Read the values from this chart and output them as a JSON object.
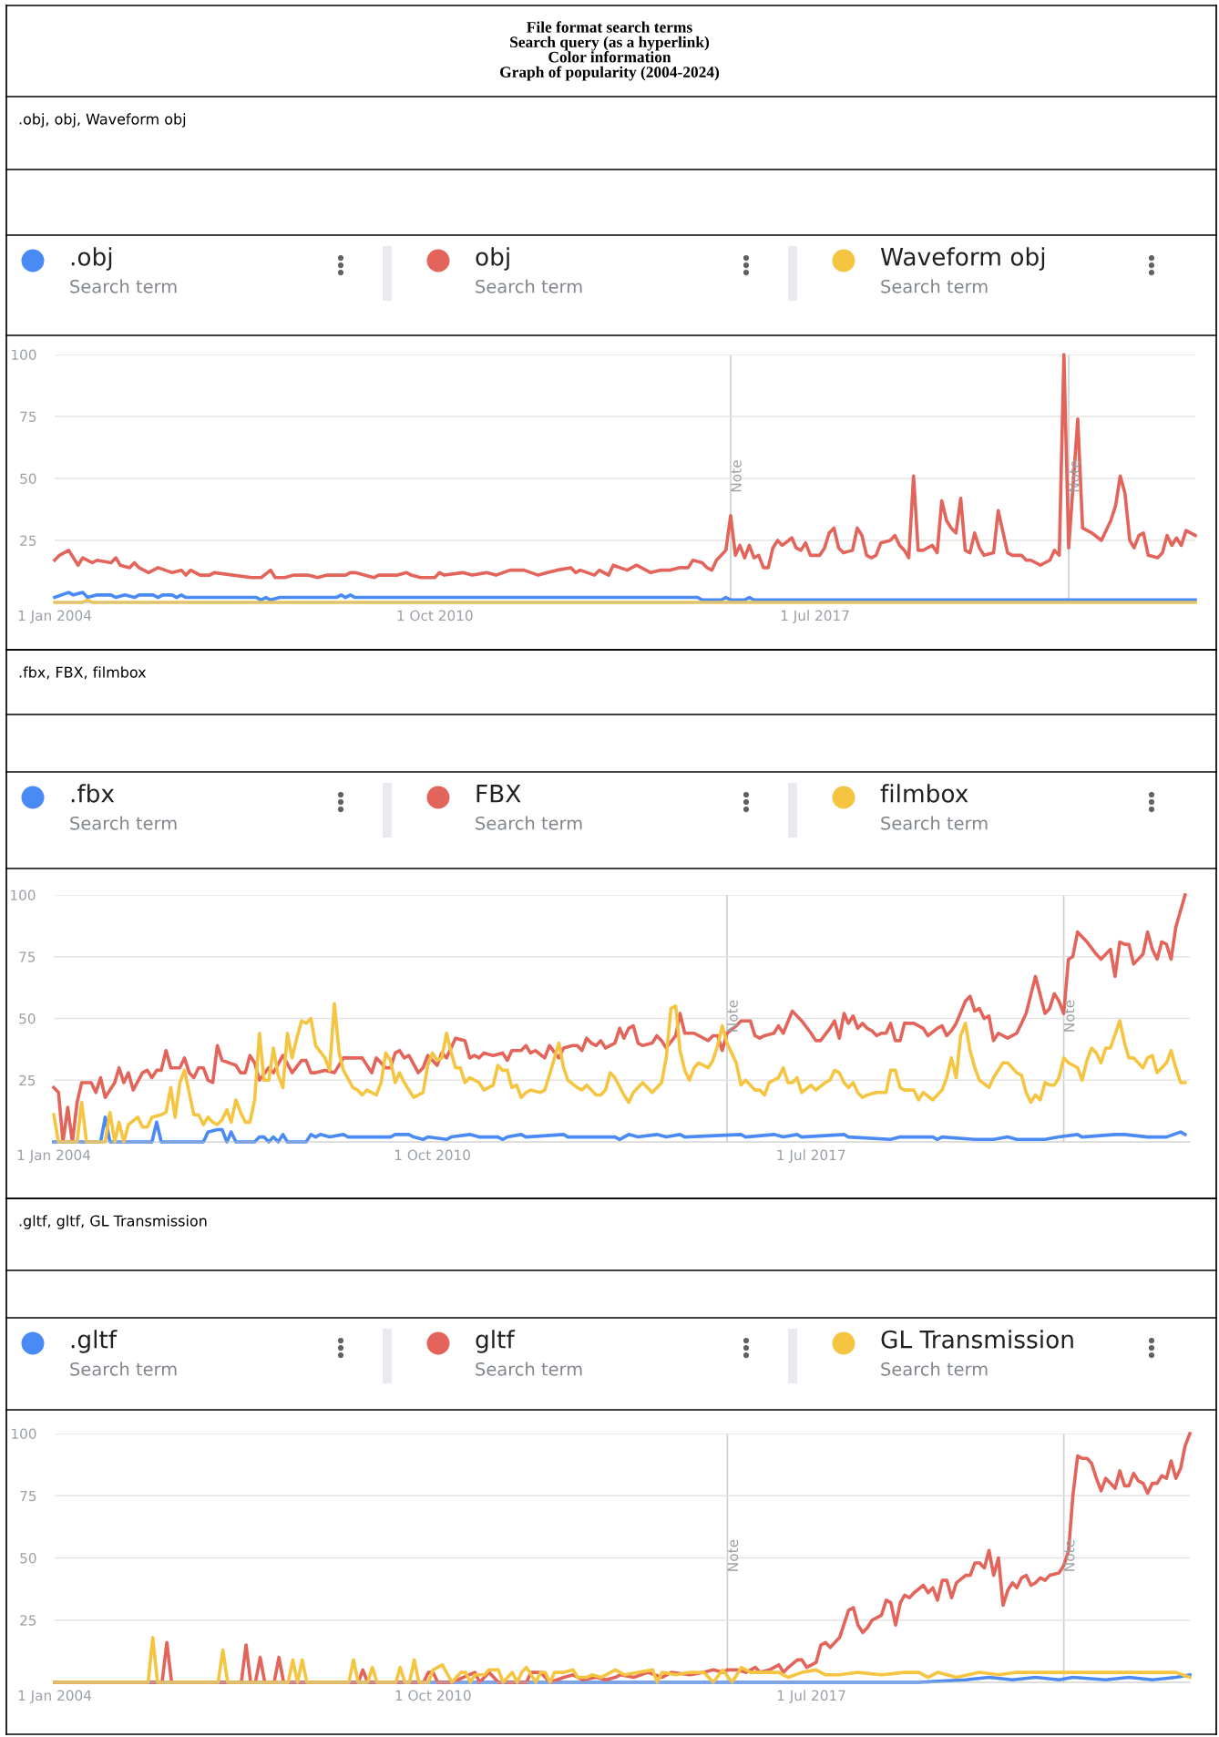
{
  "chart_data": [
    {
      "type": "line",
      "title": "File format search terms\nSearch query (as a hyperlink)\nColor information\nGraph of popularity (2004-2024)",
      "subtitle": ".obj, obj, Waveform obj",
      "legend_title": "Search term",
      "legend": "top",
      "grid": "y",
      "xlim": [
        "2004-01",
        "2024-04"
      ],
      "xticks": [
        {
          "value": "2004-01-01",
          "label": "1 Jan 2004"
        },
        {
          "value": "2010-10-01",
          "label": "1 Oct 2010"
        },
        {
          "value": "2017-07-01",
          "label": "1 Jul 2017"
        }
      ],
      "ylim": [
        0,
        100
      ],
      "yticks": [
        25,
        50,
        75,
        100
      ],
      "ref_lines": [
        {
          "axis": "x",
          "value": "2016-01",
          "label": "Note"
        },
        {
          "axis": "x",
          "value": "2022-01",
          "label": "Note"
        }
      ],
      "series": [
        {
          "name": ".obj",
          "color": "#4a8af4",
          "x": [
            "2004-01",
            "2004-04",
            "2004-05",
            "2004-07",
            "2004-08",
            "2004-10",
            "2005-01",
            "2005-02",
            "2005-04",
            "2005-06",
            "2005-07",
            "2005-10",
            "2005-11",
            "2005-12",
            "2006-02",
            "2006-03",
            "2006-04",
            "2006-05",
            "2007-08",
            "2007-09",
            "2007-10",
            "2007-11",
            "2008-01",
            "2009-01",
            "2009-02",
            "2009-03",
            "2009-04",
            "2009-05",
            "2015-06",
            "2015-07",
            "2015-11",
            "2015-12",
            "2016-01",
            "2016-04",
            "2016-05",
            "2016-06",
            "2024-04"
          ],
          "values": [
            2,
            4,
            3,
            4,
            2,
            3,
            3,
            2,
            3,
            2,
            3,
            3,
            2,
            3,
            3,
            2,
            3,
            2,
            2,
            1,
            2,
            1,
            2,
            2,
            3,
            2,
            3,
            2,
            2,
            1,
            1,
            2,
            1,
            1,
            2,
            1,
            1
          ]
        },
        {
          "name": "obj",
          "color": "#e2645a",
          "x": [
            "2004-01",
            "2004-02",
            "2004-04",
            "2004-06",
            "2004-07",
            "2004-09",
            "2004-10",
            "2005-01",
            "2005-02",
            "2005-03",
            "2005-05",
            "2005-06",
            "2005-07",
            "2005-09",
            "2005-11",
            "2006-02",
            "2006-04",
            "2006-05",
            "2006-06",
            "2006-08",
            "2006-10",
            "2006-11",
            "2007-07",
            "2007-09",
            "2007-11",
            "2007-12",
            "2008-02",
            "2008-04",
            "2008-07",
            "2008-09",
            "2008-11",
            "2009-03",
            "2009-04",
            "2009-05",
            "2009-09",
            "2009-10",
            "2010-02",
            "2010-04",
            "2010-05",
            "2010-07",
            "2010-10",
            "2010-11",
            "2010-12",
            "2011-04",
            "2011-06",
            "2011-09",
            "2011-11",
            "2012-02",
            "2012-05",
            "2012-08",
            "2012-10",
            "2012-12",
            "2013-03",
            "2013-04",
            "2013-05",
            "2013-08",
            "2013-09",
            "2013-11",
            "2013-12",
            "2014-03",
            "2014-05",
            "2014-08",
            "2014-10",
            "2014-12",
            "2015-02",
            "2015-04",
            "2015-05",
            "2015-07",
            "2015-08",
            "2015-09",
            "2015-10",
            "2015-12",
            "2016-01",
            "2016-02",
            "2016-03",
            "2016-04",
            "2016-05",
            "2016-06",
            "2016-07",
            "2016-08",
            "2016-09",
            "2016-10",
            "2016-11",
            "2016-12",
            "2017-02",
            "2017-03",
            "2017-04",
            "2017-05",
            "2017-06",
            "2017-08",
            "2017-09",
            "2017-10",
            "2017-11",
            "2017-12",
            "2018-01",
            "2018-03",
            "2018-04",
            "2018-05",
            "2018-06",
            "2018-07",
            "2018-08",
            "2018-09",
            "2018-11",
            "2018-12",
            "2019-01",
            "2019-02",
            "2019-03",
            "2019-04",
            "2019-05",
            "2019-06",
            "2019-08",
            "2019-09",
            "2019-10",
            "2019-11",
            "2019-12",
            "2020-01",
            "2020-02",
            "2020-03",
            "2020-04",
            "2020-05",
            "2020-06",
            "2020-07",
            "2020-09",
            "2020-10",
            "2020-12",
            "2021-01",
            "2021-03",
            "2021-04",
            "2021-05",
            "2021-07",
            "2021-09",
            "2021-10",
            "2021-11",
            "2021-12",
            "2022-01",
            "2022-03",
            "2022-04",
            "2022-06",
            "2022-08",
            "2022-10",
            "2022-11",
            "2022-12",
            "2023-01",
            "2023-02",
            "2023-03",
            "2023-04",
            "2023-05",
            "2023-06",
            "2023-08",
            "2023-09",
            "2023-10",
            "2023-11",
            "2023-12",
            "2024-01",
            "2024-02",
            "2024-04"
          ],
          "values": [
            17,
            19,
            21,
            15,
            18,
            16,
            17,
            16,
            18,
            15,
            14,
            16,
            14,
            12,
            14,
            12,
            13,
            11,
            13,
            11,
            11,
            12,
            10,
            10,
            13,
            10,
            10,
            11,
            11,
            10,
            11,
            11,
            12,
            12,
            10,
            11,
            11,
            12,
            11,
            10,
            10,
            12,
            11,
            12,
            11,
            12,
            11,
            13,
            13,
            11,
            12,
            13,
            14,
            12,
            13,
            11,
            13,
            11,
            15,
            13,
            15,
            12,
            13,
            13,
            14,
            14,
            17,
            16,
            14,
            13,
            17,
            21,
            35,
            19,
            23,
            18,
            23,
            18,
            19,
            14,
            14,
            22,
            25,
            23,
            26,
            22,
            21,
            24,
            19,
            19,
            22,
            28,
            30,
            22,
            20,
            21,
            30,
            27,
            19,
            18,
            19,
            24,
            25,
            27,
            23,
            21,
            18,
            51,
            21,
            21,
            23,
            20,
            41,
            33,
            30,
            28,
            42,
            21,
            20,
            28,
            22,
            19,
            20,
            37,
            20,
            19,
            19,
            17,
            17,
            15,
            17,
            21,
            19,
            100,
            22,
            74,
            30,
            28,
            25,
            33,
            39,
            51,
            44,
            25,
            22,
            27,
            28,
            19,
            18,
            20,
            27,
            23,
            26,
            23,
            29,
            27
          ]
        },
        {
          "name": "Waveform obj",
          "color": "#f5c542",
          "x": [
            "2004-01",
            "2004-07",
            "2004-08",
            "2004-09",
            "2024-04"
          ],
          "values": [
            0,
            0,
            1,
            0,
            0
          ]
        }
      ]
    },
    {
      "type": "line",
      "subtitle": ".fbx, FBX, filmbox",
      "legend_title": "Search term",
      "legend": "top",
      "grid": "y",
      "xlim": [
        "2004-01",
        "2024-04"
      ],
      "xticks": [
        {
          "value": "2004-01-01",
          "label": "1 Jan 2004"
        },
        {
          "value": "2010-10-01",
          "label": "1 Oct 2010"
        },
        {
          "value": "2017-07-01",
          "label": "1 Jul 2017"
        }
      ],
      "ylim": [
        0,
        100
      ],
      "yticks": [
        25,
        50,
        75,
        100
      ],
      "ref_lines": [
        {
          "axis": "x",
          "value": "2016-01",
          "label": "Note"
        },
        {
          "axis": "x",
          "value": "2022-01",
          "label": "Note"
        }
      ],
      "series": [
        {
          "name": ".fbx",
          "color": "#4a8af4",
          "x": [
            "2004-01",
            "2004-11",
            "2004-12",
            "2005-01",
            "2005-10",
            "2005-11",
            "2005-12",
            "2006-09",
            "2006-10",
            "2006-12",
            "2007-01",
            "2007-02",
            "2007-03",
            "2007-04",
            "2007-08",
            "2007-09",
            "2007-10",
            "2007-11",
            "2007-12",
            "2008-01",
            "2008-02",
            "2008-03",
            "2008-07",
            "2008-08",
            "2008-09",
            "2008-10",
            "2008-12",
            "2009-03",
            "2009-04",
            "2010-01",
            "2010-02",
            "2010-05",
            "2010-06",
            "2010-08",
            "2010-09",
            "2011-01",
            "2011-02",
            "2011-06",
            "2011-08",
            "2011-12",
            "2012-01",
            "2012-02",
            "2012-05",
            "2012-06",
            "2013-02",
            "2013-03",
            "2014-01",
            "2014-02",
            "2014-04",
            "2014-06",
            "2014-10",
            "2014-12",
            "2015-03",
            "2015-04",
            "2016-04",
            "2016-05",
            "2016-11",
            "2017-01",
            "2017-04",
            "2017-05",
            "2018-02",
            "2018-03",
            "2018-12",
            "2019-02",
            "2019-09",
            "2019-10",
            "2019-11",
            "2020-06",
            "2020-10",
            "2021-01",
            "2021-03",
            "2021-09",
            "2021-12",
            "2022-04",
            "2022-05",
            "2022-12",
            "2023-02",
            "2023-07",
            "2023-11",
            "2024-02",
            "2024-03"
          ],
          "values": [
            0,
            0,
            10,
            0,
            0,
            8,
            0,
            0,
            4,
            5,
            5,
            0,
            4,
            0,
            0,
            2,
            2,
            0,
            2,
            0,
            3,
            0,
            0,
            3,
            2,
            3,
            2,
            3,
            2,
            2,
            3,
            3,
            2,
            1,
            2,
            1,
            2,
            3,
            2,
            2,
            1,
            2,
            3,
            2,
            3,
            2,
            2,
            1,
            3,
            2,
            3,
            2,
            3,
            2,
            3,
            2,
            3,
            2,
            3,
            2,
            3,
            2,
            1,
            2,
            2,
            1,
            2,
            1,
            1,
            2,
            1,
            1,
            2,
            3,
            2,
            3,
            3,
            2,
            2,
            4,
            3
          ]
        },
        {
          "name": "FBX",
          "color": "#e2645a",
          "x": [
            "2004-01",
            "2004-02",
            "2004-03",
            "2004-04",
            "2004-05",
            "2004-06",
            "2004-07",
            "2004-09",
            "2004-10",
            "2004-11",
            "2004-12",
            "2005-02",
            "2005-03",
            "2005-04",
            "2005-05",
            "2005-06",
            "2005-08",
            "2005-09",
            "2005-10",
            "2005-11",
            "2005-12",
            "2006-01",
            "2006-02",
            "2006-04",
            "2006-05",
            "2006-06",
            "2006-07",
            "2006-08",
            "2006-09",
            "2006-10",
            "2006-11",
            "2006-12",
            "2007-01",
            "2007-04",
            "2007-05",
            "2007-06",
            "2007-07",
            "2007-08",
            "2007-09",
            "2007-11",
            "2007-12",
            "2008-02",
            "2008-04",
            "2008-06",
            "2008-07",
            "2008-08",
            "2008-09",
            "2008-11",
            "2009-01",
            "2009-03",
            "2009-07",
            "2009-09",
            "2009-10",
            "2009-12",
            "2010-01",
            "2010-02",
            "2010-03",
            "2010-04",
            "2010-05",
            "2010-07",
            "2010-08",
            "2010-09",
            "2010-11",
            "2010-12",
            "2011-01",
            "2011-03",
            "2011-05",
            "2011-06",
            "2011-07",
            "2011-08",
            "2011-09",
            "2011-11",
            "2012-01",
            "2012-02",
            "2012-03",
            "2012-05",
            "2012-06",
            "2012-07",
            "2012-08",
            "2012-10",
            "2012-11",
            "2013-01",
            "2013-02",
            "2013-04",
            "2013-05",
            "2013-06",
            "2013-07",
            "2013-08",
            "2013-09",
            "2013-10",
            "2013-11",
            "2014-01",
            "2014-02",
            "2014-03",
            "2014-04",
            "2014-05",
            "2014-06",
            "2014-07",
            "2014-09",
            "2014-10",
            "2014-11",
            "2014-12",
            "2015-02",
            "2015-03",
            "2015-04",
            "2015-06",
            "2015-09",
            "2015-10",
            "2015-11",
            "2015-12",
            "2016-01",
            "2016-03",
            "2016-04",
            "2016-06",
            "2016-07",
            "2016-08",
            "2016-09",
            "2016-11",
            "2016-12",
            "2017-01",
            "2017-03",
            "2017-05",
            "2017-07",
            "2017-08",
            "2017-09",
            "2017-11",
            "2017-12",
            "2018-01",
            "2018-02",
            "2018-03",
            "2018-04",
            "2018-05",
            "2018-06",
            "2018-07",
            "2018-08",
            "2018-09",
            "2018-10",
            "2018-11",
            "2018-12",
            "2019-01",
            "2019-02",
            "2019-03",
            "2019-05",
            "2019-07",
            "2019-08",
            "2019-10",
            "2019-11",
            "2019-12",
            "2020-01",
            "2020-02",
            "2020-04",
            "2020-05",
            "2020-06",
            "2020-07",
            "2020-08",
            "2020-09",
            "2020-10",
            "2020-11",
            "2021-01",
            "2021-03",
            "2021-04",
            "2021-05",
            "2021-07",
            "2021-09",
            "2021-10",
            "2021-11",
            "2021-12",
            "2022-01",
            "2022-02",
            "2022-03",
            "2022-04",
            "2022-06",
            "2022-08",
            "2022-09",
            "2022-11",
            "2022-12",
            "2023-01",
            "2023-02",
            "2023-03",
            "2023-04",
            "2023-06",
            "2023-07",
            "2023-08",
            "2023-09",
            "2023-10",
            "2023-11",
            "2023-12",
            "2024-01",
            "2024-03"
          ],
          "values": [
            22,
            20,
            0,
            14,
            0,
            16,
            24,
            24,
            20,
            26,
            18,
            24,
            30,
            24,
            28,
            21,
            28,
            29,
            26,
            29,
            29,
            37,
            30,
            30,
            34,
            28,
            26,
            30,
            30,
            25,
            24,
            39,
            33,
            31,
            28,
            28,
            35,
            32,
            25,
            30,
            28,
            35,
            28,
            33,
            33,
            28,
            28,
            29,
            28,
            34,
            34,
            28,
            34,
            30,
            30,
            36,
            37,
            34,
            35,
            28,
            30,
            35,
            31,
            36,
            34,
            42,
            41,
            34,
            35,
            34,
            36,
            35,
            36,
            33,
            37,
            37,
            39,
            36,
            37,
            34,
            39,
            34,
            38,
            39,
            39,
            37,
            42,
            40,
            39,
            41,
            38,
            40,
            46,
            42,
            46,
            47,
            40,
            39,
            40,
            43,
            41,
            38,
            43,
            52,
            44,
            44,
            41,
            43,
            43,
            37,
            44,
            47,
            49,
            49,
            43,
            42,
            43,
            44,
            47,
            44,
            53,
            49,
            44,
            41,
            41,
            46,
            49,
            42,
            52,
            48,
            51,
            46,
            48,
            46,
            45,
            43,
            44,
            44,
            48,
            41,
            41,
            48,
            48,
            46,
            43,
            46,
            47,
            43,
            45,
            48,
            57,
            59,
            53,
            54,
            50,
            51,
            41,
            44,
            42,
            44,
            48,
            52,
            67,
            52,
            54,
            60,
            57,
            52,
            74,
            75,
            85,
            81,
            76,
            74,
            78,
            67,
            81,
            80,
            80,
            72,
            76,
            85,
            78,
            74,
            81,
            80,
            74,
            87,
            100
          ]
        },
        {
          "name": "filmbox",
          "color": "#f5c542",
          "x": [
            "2004-01",
            "2004-02",
            "2004-06",
            "2004-07",
            "2004-08",
            "2004-12",
            "2005-01",
            "2005-02",
            "2005-03",
            "2005-04",
            "2005-05",
            "2005-07",
            "2005-08",
            "2005-09",
            "2005-10",
            "2005-12",
            "2006-01",
            "2006-02",
            "2006-03",
            "2006-04",
            "2006-05",
            "2006-07",
            "2006-08",
            "2006-09",
            "2006-10",
            "2006-11",
            "2006-12",
            "2007-01",
            "2007-02",
            "2007-03",
            "2007-04",
            "2007-05",
            "2007-06",
            "2007-07",
            "2007-08",
            "2007-09",
            "2007-10",
            "2007-11",
            "2007-12",
            "2008-01",
            "2008-02",
            "2008-03",
            "2008-04",
            "2008-05",
            "2008-06",
            "2008-07",
            "2008-08",
            "2008-09",
            "2008-11",
            "2008-12",
            "2009-01",
            "2009-02",
            "2009-03",
            "2009-05",
            "2009-06",
            "2009-07",
            "2009-08",
            "2009-10",
            "2009-11",
            "2009-12",
            "2010-01",
            "2010-02",
            "2010-03",
            "2010-04",
            "2010-06",
            "2010-08",
            "2010-09",
            "2010-10",
            "2010-11",
            "2010-12",
            "2011-01",
            "2011-02",
            "2011-03",
            "2011-04",
            "2011-05",
            "2011-06",
            "2011-08",
            "2011-09",
            "2011-11",
            "2011-12",
            "2012-01",
            "2012-02",
            "2012-03",
            "2012-04",
            "2012-05",
            "2012-06",
            "2012-07",
            "2012-09",
            "2012-10",
            "2012-11",
            "2013-01",
            "2013-02",
            "2013-03",
            "2013-05",
            "2013-06",
            "2013-07",
            "2013-08",
            "2013-09",
            "2013-10",
            "2013-11",
            "2013-12",
            "2014-01",
            "2014-03",
            "2014-04",
            "2014-05",
            "2014-07",
            "2014-09",
            "2014-11",
            "2014-12",
            "2015-01",
            "2015-02",
            "2015-03",
            "2015-04",
            "2015-05",
            "2015-06",
            "2015-07",
            "2015-09",
            "2015-10",
            "2015-11",
            "2015-12",
            "2016-01",
            "2016-03",
            "2016-04",
            "2016-05",
            "2016-07",
            "2016-08",
            "2016-09",
            "2016-10",
            "2016-12",
            "2017-01",
            "2017-02",
            "2017-03",
            "2017-04",
            "2017-05",
            "2017-07",
            "2017-08",
            "2017-10",
            "2017-11",
            "2017-12",
            "2018-01",
            "2018-02",
            "2018-03",
            "2018-04",
            "2018-05",
            "2018-06",
            "2018-07",
            "2018-09",
            "2018-11",
            "2018-12",
            "2019-01",
            "2019-02",
            "2019-03",
            "2019-05",
            "2019-06",
            "2019-07",
            "2019-09",
            "2019-11",
            "2019-12",
            "2020-01",
            "2020-02",
            "2020-03",
            "2020-04",
            "2020-05",
            "2020-06",
            "2020-07",
            "2020-09",
            "2020-10",
            "2020-12",
            "2021-01",
            "2021-03",
            "2021-04",
            "2021-05",
            "2021-06",
            "2021-07",
            "2021-08",
            "2021-09",
            "2021-10",
            "2021-11",
            "2021-12",
            "2022-01",
            "2022-02",
            "2022-04",
            "2022-05",
            "2022-06",
            "2022-07",
            "2022-08",
            "2022-09",
            "2022-10",
            "2022-11",
            "2023-01",
            "2023-02",
            "2023-03",
            "2023-04",
            "2023-06",
            "2023-07",
            "2023-08",
            "2023-09",
            "2023-10",
            "2023-11",
            "2023-12",
            "2024-01",
            "2024-02",
            "2024-03"
          ],
          "values": [
            11,
            0,
            0,
            16,
            0,
            0,
            12,
            0,
            8,
            0,
            7,
            10,
            6,
            6,
            10,
            11,
            12,
            22,
            10,
            24,
            29,
            11,
            11,
            7,
            10,
            8,
            7,
            9,
            13,
            8,
            17,
            12,
            8,
            8,
            17,
            44,
            25,
            25,
            38,
            27,
            22,
            44,
            34,
            42,
            49,
            48,
            50,
            39,
            34,
            29,
            56,
            36,
            29,
            22,
            21,
            19,
            21,
            19,
            24,
            36,
            33,
            24,
            28,
            24,
            18,
            20,
            31,
            36,
            33,
            34,
            44,
            36,
            30,
            30,
            24,
            26,
            24,
            21,
            23,
            31,
            29,
            29,
            22,
            23,
            18,
            20,
            21,
            20,
            21,
            27,
            40,
            30,
            25,
            22,
            21,
            23,
            21,
            19,
            19,
            21,
            28,
            26,
            19,
            16,
            20,
            24,
            20,
            24,
            34,
            54,
            55,
            37,
            29,
            25,
            30,
            32,
            30,
            33,
            39,
            47,
            40,
            32,
            23,
            25,
            21,
            21,
            19,
            24,
            26,
            30,
            24,
            24,
            26,
            20,
            23,
            21,
            24,
            25,
            29,
            28,
            24,
            22,
            24,
            20,
            18,
            19,
            20,
            20,
            29,
            29,
            22,
            21,
            21,
            17,
            20,
            17,
            21,
            26,
            34,
            26,
            43,
            48,
            37,
            30,
            25,
            22,
            26,
            32,
            32,
            28,
            27,
            20,
            16,
            19,
            17,
            24,
            23,
            23,
            26,
            34,
            32,
            30,
            25,
            33,
            38,
            36,
            32,
            38,
            38,
            49,
            40,
            34,
            34,
            30,
            34,
            35,
            28,
            30,
            32,
            37,
            30,
            24,
            24
          ]
        }
      ]
    },
    {
      "type": "line",
      "subtitle": ".gltf, gltf, GL Transmission",
      "legend_title": "Search term",
      "legend": "top",
      "grid": "y",
      "xlim": [
        "2004-01",
        "2024-04"
      ],
      "xticks": [
        {
          "value": "2004-01-01",
          "label": "1 Jan 2004"
        },
        {
          "value": "2010-10-01",
          "label": "1 Oct 2010"
        },
        {
          "value": "2017-07-01",
          "label": "1 Jul 2017"
        }
      ],
      "ylim": [
        0,
        100
      ],
      "yticks": [
        25,
        50,
        75,
        100
      ],
      "ref_lines": [
        {
          "axis": "x",
          "value": "2016-01",
          "label": "Note"
        },
        {
          "axis": "x",
          "value": "2022-01",
          "label": "Note"
        }
      ],
      "series": [
        {
          "name": ".gltf",
          "color": "#4a8af4",
          "x": [
            "2004-01",
            "2019-06",
            "2020-04",
            "2020-09",
            "2021-02",
            "2021-07",
            "2021-12",
            "2022-03",
            "2022-10",
            "2023-03",
            "2023-08",
            "2024-01",
            "2024-04"
          ],
          "values": [
            0,
            0,
            1,
            2,
            1,
            2,
            1,
            2,
            1,
            2,
            1,
            2,
            3
          ]
        },
        {
          "name": "gltf",
          "color": "#e2645a",
          "x": [
            "2004-01",
            "2005-12",
            "2006-01",
            "2006-02",
            "2007-05",
            "2007-06",
            "2007-07",
            "2007-08",
            "2007-09",
            "2007-10",
            "2007-12",
            "2008-01",
            "2008-02",
            "2009-06",
            "2009-07",
            "2009-08",
            "2010-08",
            "2010-09",
            "2010-10",
            "2010-11",
            "2011-02",
            "2011-07",
            "2011-08",
            "2011-10",
            "2011-12",
            "2012-06",
            "2012-07",
            "2012-09",
            "2012-11",
            "2013-02",
            "2013-04",
            "2013-06",
            "2013-09",
            "2013-11",
            "2014-01",
            "2014-02",
            "2014-05",
            "2014-08",
            "2014-11",
            "2015-01",
            "2015-05",
            "2015-08",
            "2015-10",
            "2015-12",
            "2016-01",
            "2016-03",
            "2016-05",
            "2016-07",
            "2016-08",
            "2016-10",
            "2016-12",
            "2017-01",
            "2017-02",
            "2017-04",
            "2017-05",
            "2017-06",
            "2017-08",
            "2017-09",
            "2017-10",
            "2017-11",
            "2017-12",
            "2018-01",
            "2018-03",
            "2018-04",
            "2018-05",
            "2018-06",
            "2018-07",
            "2018-08",
            "2018-10",
            "2018-11",
            "2018-12",
            "2019-01",
            "2019-02",
            "2019-03",
            "2019-04",
            "2019-05",
            "2019-07",
            "2019-08",
            "2019-09",
            "2019-10",
            "2019-11",
            "2019-12",
            "2020-01",
            "2020-02",
            "2020-04",
            "2020-05",
            "2020-06",
            "2020-07",
            "2020-08",
            "2020-09",
            "2020-10",
            "2020-11",
            "2020-12",
            "2021-01",
            "2021-02",
            "2021-03",
            "2021-04",
            "2021-05",
            "2021-06",
            "2021-07",
            "2021-08",
            "2021-09",
            "2021-10",
            "2021-12",
            "2022-01",
            "2022-02",
            "2022-03",
            "2022-04",
            "2022-05",
            "2022-06",
            "2022-07",
            "2022-08",
            "2022-09",
            "2022-10",
            "2022-11",
            "2022-12",
            "2023-01",
            "2023-02",
            "2023-03",
            "2023-04",
            "2023-05",
            "2023-06",
            "2023-07",
            "2023-08",
            "2023-09",
            "2023-10",
            "2023-11",
            "2023-12",
            "2024-01",
            "2024-02",
            "2024-03",
            "2024-04"
          ],
          "values": [
            0,
            0,
            16,
            0,
            0,
            15,
            0,
            0,
            10,
            0,
            0,
            10,
            0,
            0,
            5,
            0,
            0,
            4,
            4,
            0,
            0,
            4,
            0,
            4,
            0,
            0,
            4,
            4,
            0,
            2,
            3,
            1,
            2,
            1,
            2,
            3,
            2,
            4,
            2,
            4,
            3,
            4,
            5,
            4,
            5,
            5,
            4,
            6,
            4,
            5,
            7,
            4,
            6,
            9,
            9,
            6,
            8,
            15,
            16,
            14,
            16,
            18,
            29,
            30,
            23,
            20,
            22,
            25,
            27,
            33,
            32,
            23,
            32,
            35,
            34,
            36,
            39,
            36,
            38,
            33,
            41,
            41,
            34,
            40,
            43,
            43,
            48,
            48,
            46,
            53,
            43,
            50,
            31,
            37,
            40,
            38,
            42,
            43,
            39,
            40,
            42,
            41,
            43,
            44,
            47,
            53,
            75,
            91,
            90,
            90,
            88,
            82,
            77,
            82,
            80,
            78,
            85,
            79,
            79,
            84,
            81,
            80,
            76,
            80,
            80,
            83,
            82,
            89,
            82,
            86,
            95,
            100
          ]
        },
        {
          "name": "GL Transmission",
          "color": "#f5c542",
          "x": [
            "2004-01",
            "2005-09",
            "2005-10",
            "2005-11",
            "2006-12",
            "2007-01",
            "2007-02",
            "2008-03",
            "2008-04",
            "2008-05",
            "2008-06",
            "2008-07",
            "2009-04",
            "2009-05",
            "2009-06",
            "2009-08",
            "2009-09",
            "2009-10",
            "2010-02",
            "2010-03",
            "2010-04",
            "2010-05",
            "2010-06",
            "2010-07",
            "2010-09",
            "2010-10",
            "2010-12",
            "2011-02",
            "2011-04",
            "2011-05",
            "2011-06",
            "2011-07",
            "2011-09",
            "2011-10",
            "2011-12",
            "2012-01",
            "2012-03",
            "2012-04",
            "2012-05",
            "2012-06",
            "2012-08",
            "2012-09",
            "2012-10",
            "2012-11",
            "2012-12",
            "2013-02",
            "2013-04",
            "2013-05",
            "2013-07",
            "2013-08",
            "2013-10",
            "2013-12",
            "2014-01",
            "2014-02",
            "2014-03",
            "2014-06",
            "2014-09",
            "2014-10",
            "2014-11",
            "2015-02",
            "2015-05",
            "2015-08",
            "2015-10",
            "2015-12",
            "2016-02",
            "2016-04",
            "2016-06",
            "2016-08",
            "2016-12",
            "2017-02",
            "2017-05",
            "2017-08",
            "2017-10",
            "2018-01",
            "2018-05",
            "2018-10",
            "2019-03",
            "2019-06",
            "2019-08",
            "2019-10",
            "2020-02",
            "2020-07",
            "2020-11",
            "2021-03",
            "2021-08",
            "2021-12",
            "2022-04",
            "2022-08",
            "2022-12",
            "2023-04",
            "2023-09",
            "2024-01",
            "2024-04"
          ],
          "values": [
            0,
            0,
            18,
            0,
            0,
            13,
            0,
            0,
            9,
            0,
            9,
            0,
            0,
            9,
            0,
            0,
            6,
            0,
            0,
            6,
            0,
            0,
            9,
            0,
            0,
            5,
            7,
            0,
            4,
            4,
            0,
            3,
            3,
            5,
            5,
            0,
            4,
            0,
            4,
            6,
            0,
            4,
            4,
            0,
            4,
            4,
            5,
            2,
            2,
            3,
            2,
            4,
            5,
            4,
            3,
            4,
            5,
            0,
            4,
            3,
            4,
            4,
            0,
            5,
            0,
            6,
            4,
            4,
            4,
            2,
            4,
            5,
            3,
            3,
            4,
            3,
            4,
            4,
            2,
            4,
            2,
            4,
            3,
            4,
            4,
            4,
            4,
            4,
            4,
            4,
            4,
            4,
            2
          ]
        }
      ]
    }
  ]
}
